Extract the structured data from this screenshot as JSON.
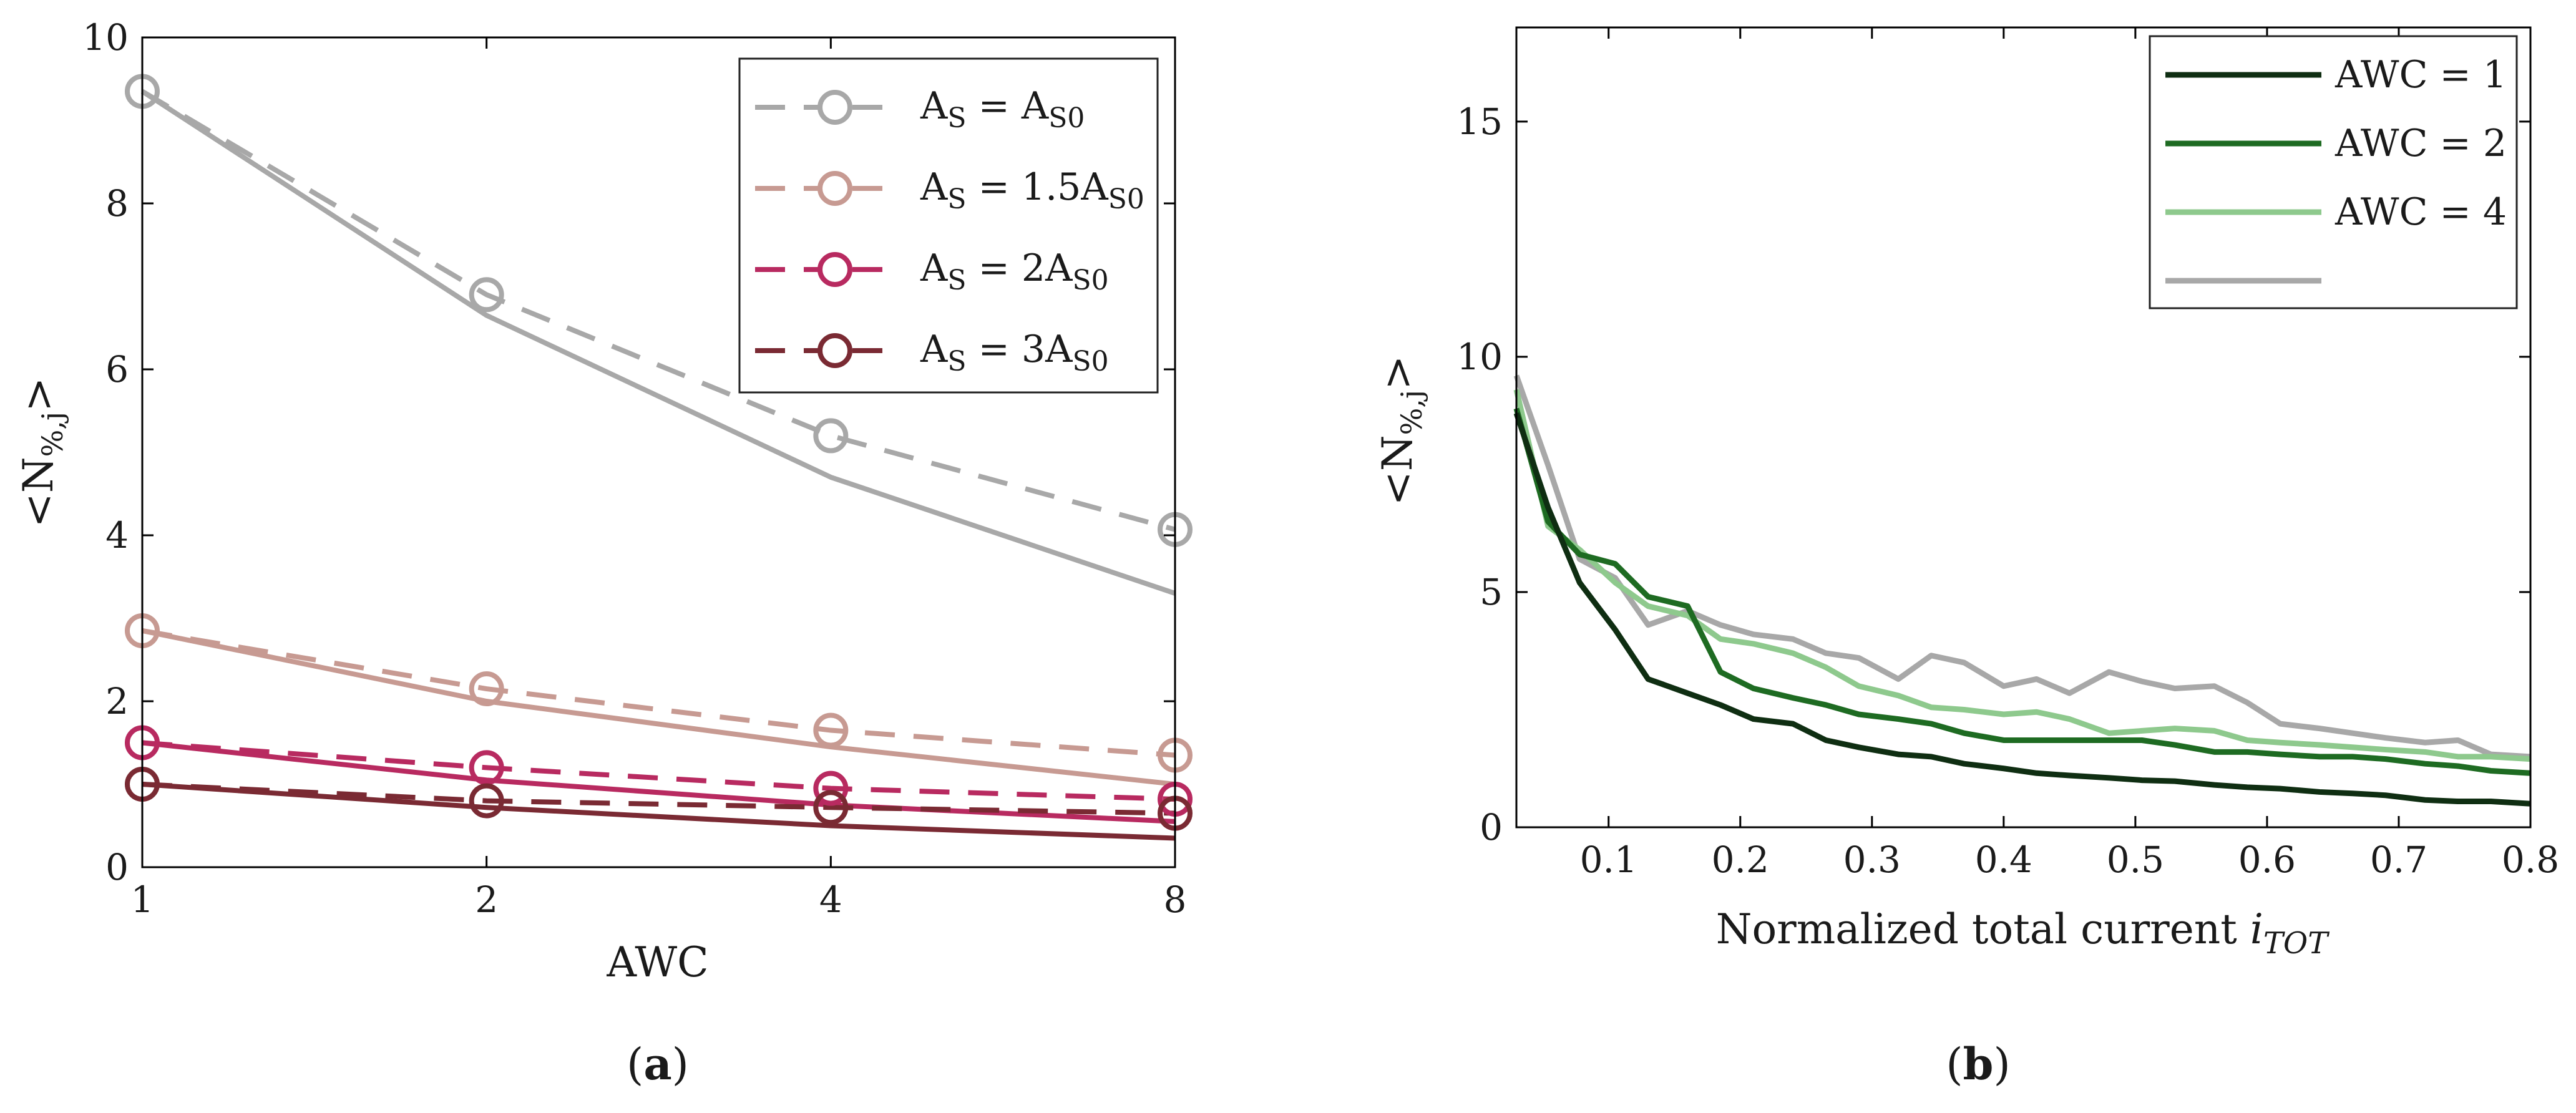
{
  "chart_data": [
    {
      "type": "line",
      "panel_label": "a",
      "xlabel": "AWC",
      "ylabel_main": "<N",
      "ylabel_sub": "%,j",
      "ylabel_end": ">",
      "x": [
        1,
        2,
        4,
        8
      ],
      "x_tick_labels": [
        "1",
        "2",
        "4",
        "8"
      ],
      "x_scale": "log2",
      "ylim": [
        0,
        10
      ],
      "y_ticks": [
        0,
        2,
        4,
        6,
        8,
        10
      ],
      "y_tick_labels": [
        "0",
        "2",
        "4",
        "6",
        "8",
        "10"
      ],
      "legend_position": "top-right",
      "series": [
        {
          "name": "A_S = A_S0",
          "legend_parts": {
            "a": "A",
            "s": "S",
            "eq": " = ",
            "b": "A",
            "bs": "S0"
          },
          "color": "#a8a8a8",
          "dashed_with_circles": [
            9.35,
            6.9,
            5.2,
            4.07
          ],
          "solid": [
            9.35,
            6.65,
            4.7,
            3.3
          ]
        },
        {
          "name": "A_S = 1.5A_S0",
          "legend_parts": {
            "a": "A",
            "s": "S",
            "eq": " = 1.5",
            "b": "A",
            "bs": "S0"
          },
          "color": "#c79a92",
          "dashed_with_circles": [
            2.85,
            2.15,
            1.65,
            1.35
          ],
          "solid": [
            2.85,
            2.0,
            1.45,
            1.0
          ]
        },
        {
          "name": "A_S = 2A_S0",
          "legend_parts": {
            "a": "A",
            "s": "S",
            "eq": " = 2",
            "b": "A",
            "bs": "S0"
          },
          "color": "#b82a60",
          "dashed_with_circles": [
            1.5,
            1.2,
            0.95,
            0.82
          ],
          "solid": [
            1.5,
            1.05,
            0.75,
            0.55
          ]
        },
        {
          "name": "A_S = 3A_S0",
          "legend_parts": {
            "a": "A",
            "s": "S",
            "eq": " = 3",
            "b": "A",
            "bs": "S0"
          },
          "color": "#7a2a33",
          "dashed_with_circles": [
            1.0,
            0.8,
            0.72,
            0.65
          ],
          "solid": [
            1.0,
            0.72,
            0.5,
            0.35
          ]
        }
      ]
    },
    {
      "type": "line",
      "panel_label": "b",
      "xlabel": "Normalized total current",
      "xlabel_symbol": "i",
      "xlabel_symbol_sub": "TOT",
      "ylabel_main": "<N",
      "ylabel_sub": "%,j",
      "ylabel_end": ">",
      "xlim": [
        0.03,
        0.8
      ],
      "ylim": [
        0,
        17
      ],
      "x_ticks": [
        0.1,
        0.2,
        0.3,
        0.4,
        0.5,
        0.6,
        0.7,
        0.8
      ],
      "x_tick_labels": [
        "0.1",
        "0.2",
        "0.3",
        "0.4",
        "0.5",
        "0.6",
        "0.7",
        "0.8"
      ],
      "y_ticks": [
        0,
        5,
        10,
        15
      ],
      "y_tick_labels": [
        "0",
        "5",
        "10",
        "15"
      ],
      "legend_position": "top-right",
      "x": [
        0.03,
        0.054,
        0.078,
        0.105,
        0.13,
        0.16,
        0.185,
        0.21,
        0.24,
        0.265,
        0.29,
        0.32,
        0.345,
        0.37,
        0.4,
        0.425,
        0.45,
        0.48,
        0.505,
        0.53,
        0.56,
        0.585,
        0.61,
        0.64,
        0.665,
        0.69,
        0.72,
        0.745,
        0.77,
        0.8
      ],
      "series": [
        {
          "name": "AWC = 1",
          "color": "#0f2e12",
          "values": [
            8.8,
            6.8,
            5.2,
            4.2,
            3.15,
            2.85,
            2.6,
            2.3,
            2.2,
            1.85,
            1.7,
            1.55,
            1.5,
            1.35,
            1.25,
            1.15,
            1.1,
            1.05,
            1.0,
            0.98,
            0.9,
            0.85,
            0.82,
            0.75,
            0.72,
            0.68,
            0.58,
            0.55,
            0.55,
            0.5
          ]
        },
        {
          "name": "AWC = 2",
          "color": "#1e6b22",
          "values": [
            8.9,
            6.5,
            5.8,
            5.6,
            4.9,
            4.7,
            3.3,
            2.95,
            2.75,
            2.6,
            2.4,
            2.3,
            2.2,
            2.0,
            1.85,
            1.85,
            1.85,
            1.85,
            1.85,
            1.75,
            1.6,
            1.6,
            1.55,
            1.5,
            1.5,
            1.45,
            1.35,
            1.3,
            1.2,
            1.15
          ]
        },
        {
          "name": "AWC = 4",
          "color": "#8ec98d",
          "values": [
            9.3,
            6.4,
            5.9,
            5.2,
            4.7,
            4.5,
            4.0,
            3.9,
            3.7,
            3.4,
            3.0,
            2.8,
            2.55,
            2.5,
            2.4,
            2.45,
            2.3,
            2.0,
            2.05,
            2.1,
            2.05,
            1.85,
            1.8,
            1.75,
            1.7,
            1.65,
            1.6,
            1.5,
            1.5,
            1.45
          ]
        },
        {
          "name": "",
          "color": "#a8a8a8",
          "values": [
            9.6,
            7.7,
            5.7,
            5.3,
            4.3,
            4.6,
            4.3,
            4.1,
            4.0,
            3.7,
            3.6,
            3.15,
            3.65,
            3.5,
            3.0,
            3.15,
            2.85,
            3.3,
            3.1,
            2.95,
            3.0,
            2.65,
            2.2,
            2.1,
            2.0,
            1.9,
            1.8,
            1.85,
            1.55,
            1.5
          ]
        }
      ]
    }
  ]
}
